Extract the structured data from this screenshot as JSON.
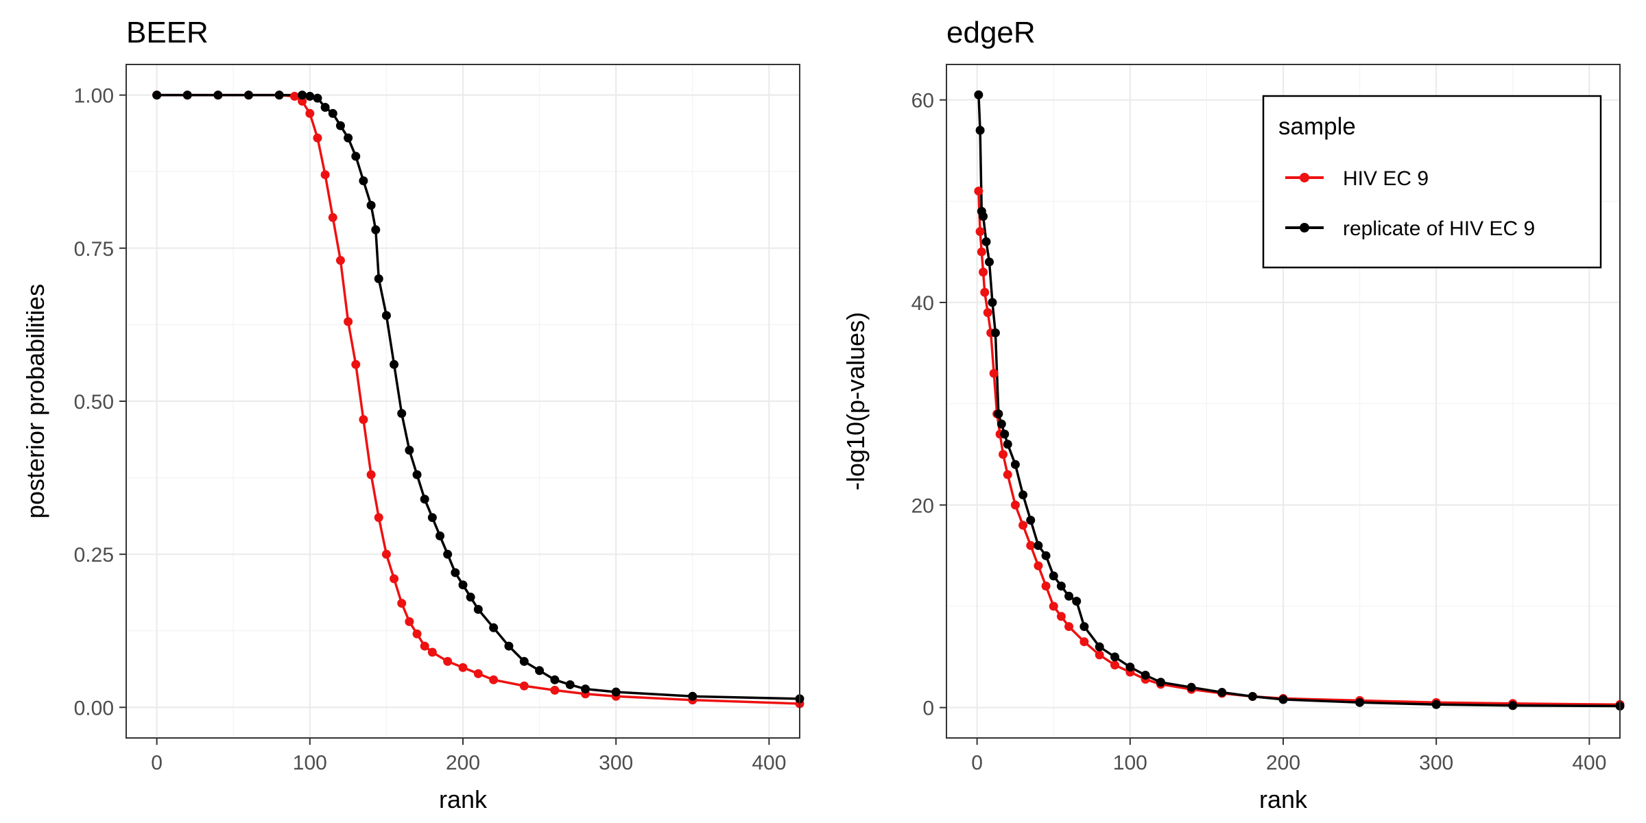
{
  "legend": {
    "title": "sample",
    "entries": [
      {
        "name": "HIV EC 9",
        "color": "#ee1111"
      },
      {
        "name": "replicate of HIV EC 9",
        "color": "#000000"
      }
    ]
  },
  "chart_data": [
    {
      "type": "line",
      "markers": true,
      "title": "BEER",
      "xlabel": "rank",
      "ylabel": "posterior probabilities",
      "xlim": [
        -20,
        420
      ],
      "ylim": [
        -0.05,
        1.05
      ],
      "x_ticks": [
        0,
        100,
        200,
        300,
        400
      ],
      "x_tick_labels": [
        "0",
        "100",
        "200",
        "300",
        "400"
      ],
      "y_ticks": [
        0,
        0.25,
        0.5,
        0.75,
        1.0
      ],
      "y_tick_labels": [
        "0.00",
        "0.25",
        "0.50",
        "0.75",
        "1.00"
      ],
      "grid": true,
      "series": [
        {
          "name": "HIV EC 9",
          "color": "#ee1111",
          "x": [
            0,
            20,
            40,
            60,
            80,
            90,
            95,
            100,
            105,
            110,
            115,
            120,
            125,
            130,
            135,
            140,
            145,
            150,
            155,
            160,
            165,
            170,
            175,
            180,
            190,
            200,
            210,
            220,
            240,
            260,
            280,
            300,
            350,
            420
          ],
          "y": [
            1.0,
            1.0,
            1.0,
            1.0,
            1.0,
            0.998,
            0.99,
            0.97,
            0.93,
            0.87,
            0.8,
            0.73,
            0.63,
            0.56,
            0.47,
            0.38,
            0.31,
            0.25,
            0.21,
            0.17,
            0.14,
            0.12,
            0.1,
            0.09,
            0.075,
            0.065,
            0.055,
            0.045,
            0.035,
            0.028,
            0.022,
            0.018,
            0.012,
            0.006
          ]
        },
        {
          "name": "replicate of HIV EC 9",
          "color": "#000000",
          "x": [
            0,
            20,
            40,
            60,
            80,
            95,
            100,
            105,
            110,
            115,
            120,
            125,
            130,
            135,
            140,
            143,
            145,
            150,
            155,
            160,
            165,
            170,
            175,
            180,
            185,
            190,
            195,
            200,
            205,
            210,
            220,
            230,
            240,
            250,
            260,
            270,
            280,
            300,
            350,
            420
          ],
          "y": [
            1.0,
            1.0,
            1.0,
            1.0,
            1.0,
            1.0,
            0.998,
            0.995,
            0.98,
            0.97,
            0.95,
            0.93,
            0.9,
            0.86,
            0.82,
            0.78,
            0.7,
            0.64,
            0.56,
            0.48,
            0.42,
            0.38,
            0.34,
            0.31,
            0.28,
            0.25,
            0.22,
            0.2,
            0.18,
            0.16,
            0.13,
            0.1,
            0.075,
            0.06,
            0.045,
            0.037,
            0.03,
            0.025,
            0.018,
            0.014
          ]
        }
      ]
    },
    {
      "type": "line",
      "markers": true,
      "title": "edgeR",
      "xlabel": "rank",
      "ylabel": "-log10(p-values)",
      "xlim": [
        -20,
        420
      ],
      "ylim": [
        -3,
        63.5
      ],
      "x_ticks": [
        0,
        100,
        200,
        300,
        400
      ],
      "x_tick_labels": [
        "0",
        "100",
        "200",
        "300",
        "400"
      ],
      "y_ticks": [
        0,
        20,
        40,
        60
      ],
      "y_tick_labels": [
        "0",
        "20",
        "40",
        "60"
      ],
      "grid": true,
      "legend_position": "top-right",
      "series": [
        {
          "name": "HIV EC 9",
          "color": "#ee1111",
          "x": [
            1,
            2,
            3,
            4,
            5,
            7,
            9,
            11,
            13,
            15,
            17,
            20,
            25,
            30,
            35,
            40,
            45,
            50,
            55,
            60,
            70,
            80,
            90,
            100,
            110,
            120,
            140,
            160,
            180,
            200,
            250,
            300,
            350,
            420
          ],
          "y": [
            51,
            47,
            45,
            43,
            41,
            39,
            37,
            33,
            29,
            27,
            25,
            23,
            20,
            18,
            16,
            14,
            12,
            10,
            9,
            8,
            6.5,
            5.2,
            4.2,
            3.5,
            2.8,
            2.3,
            1.8,
            1.4,
            1.1,
            0.9,
            0.7,
            0.5,
            0.4,
            0.3
          ]
        },
        {
          "name": "replicate of HIV EC 9",
          "color": "#000000",
          "x": [
            1,
            2,
            3,
            4,
            6,
            8,
            10,
            12,
            14,
            16,
            18,
            20,
            25,
            30,
            35,
            40,
            45,
            50,
            55,
            60,
            65,
            70,
            80,
            90,
            100,
            110,
            120,
            140,
            160,
            180,
            200,
            250,
            300,
            350,
            420
          ],
          "y": [
            60.5,
            57,
            49,
            48.5,
            46,
            44,
            40,
            37,
            29,
            28,
            27,
            26,
            24,
            21,
            18.5,
            16,
            15,
            13,
            12,
            11,
            10.5,
            8,
            6,
            5,
            4,
            3.2,
            2.5,
            2,
            1.5,
            1.1,
            0.8,
            0.5,
            0.3,
            0.2,
            0.15
          ]
        }
      ]
    }
  ]
}
